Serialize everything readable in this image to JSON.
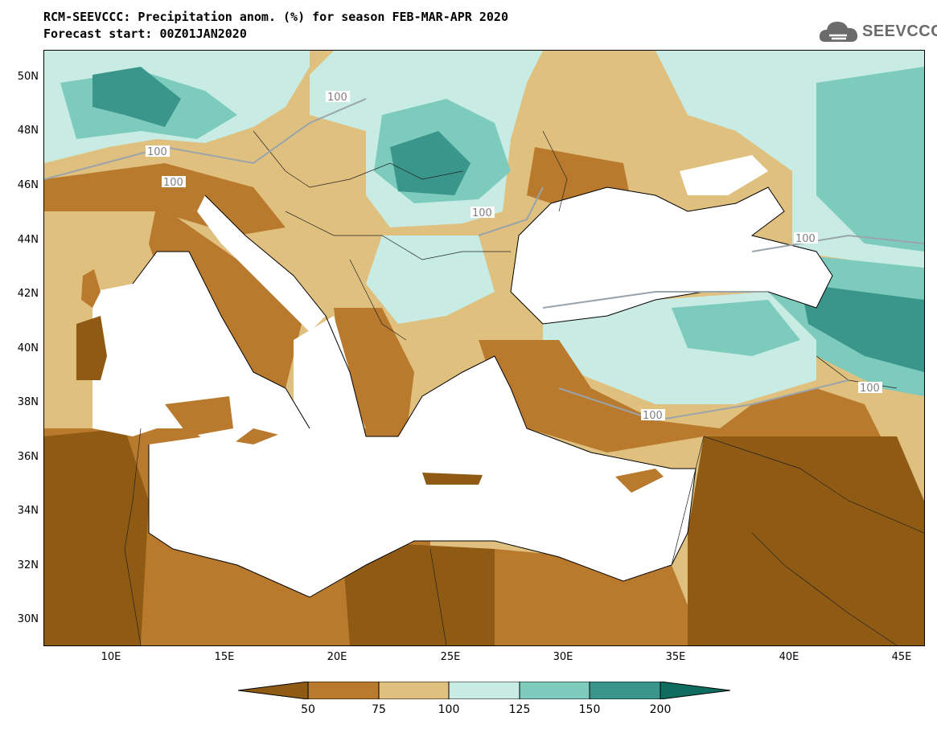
{
  "header": {
    "title_line1": "RCM-SEEVCCC: Precipitation anom. (%) for season FEB-MAR-APR 2020",
    "title_line2": "Forecast start: 00Z01JAN2020",
    "logo_text": "SEEVCCC"
  },
  "map": {
    "lat_ticks": [
      "50N",
      "48N",
      "46N",
      "44N",
      "42N",
      "40N",
      "38N",
      "36N",
      "34N",
      "32N",
      "30N"
    ],
    "lon_ticks": [
      "10E",
      "15E",
      "20E",
      "25E",
      "30E",
      "35E",
      "40E",
      "45E"
    ],
    "contour_labels": [
      "100",
      "100",
      "100",
      "100",
      "100",
      "100",
      "100",
      "100"
    ]
  },
  "legend": {
    "ticks": [
      "50",
      "75",
      "100",
      "125",
      "150",
      "200"
    ],
    "colors": {
      "below_50": "#8f5a13",
      "50_75": "#b97a2e",
      "75_100": "#dfc07f",
      "100_125": "#c8ece4",
      "125_150": "#7ccbbc",
      "150_200": "#3a968a",
      "above_200": "#0f6d60",
      "sea": "#ffffff"
    }
  }
}
